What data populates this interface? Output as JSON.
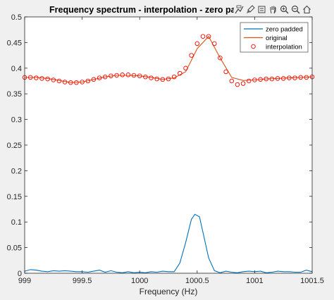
{
  "chart_data": {
    "type": "line",
    "title": "Frequency spectrum - interpolation - zero paddin",
    "xlabel": "Frequency (Hz)",
    "ylabel": "",
    "xlim": [
      999,
      1001.5
    ],
    "ylim": [
      0,
      0.5
    ],
    "xticks": [
      "999",
      "999.5",
      "1000",
      "1000.5",
      "1001",
      "1001.5"
    ],
    "yticks": [
      "0",
      "0.05",
      "0.1",
      "0.15",
      "0.2",
      "0.25",
      "0.3",
      "0.35",
      "0.4",
      "0.45",
      "0.5"
    ],
    "grid": false,
    "legend_position": "top-right",
    "series": [
      {
        "name": "zero padded",
        "color": "#0072bd",
        "style": "line",
        "x": [
          999.0,
          999.05,
          999.1,
          999.15,
          999.2,
          999.25,
          999.3,
          999.35,
          999.4,
          999.45,
          999.5,
          999.55,
          999.6,
          999.65,
          999.7,
          999.75,
          999.8,
          999.85,
          999.9,
          999.95,
          1000.0,
          1000.05,
          1000.1,
          1000.15,
          1000.2,
          1000.25,
          1000.3,
          1000.35,
          1000.4,
          1000.45,
          1000.48,
          1000.52,
          1000.55,
          1000.6,
          1000.65,
          1000.7,
          1000.75,
          1000.8,
          1000.85,
          1000.9,
          1000.95,
          1001.0,
          1001.05,
          1001.1,
          1001.15,
          1001.2,
          1001.25,
          1001.3,
          1001.35,
          1001.4,
          1001.45,
          1001.5
        ],
        "y": [
          0.004,
          0.007,
          0.006,
          0.004,
          0.003,
          0.005,
          0.004,
          0.005,
          0.004,
          0.003,
          0.003,
          0.002,
          0.004,
          0.006,
          0.002,
          0.005,
          0.002,
          0.001,
          0.003,
          0.001,
          0.002,
          0.001,
          0.003,
          0.002,
          0.004,
          0.003,
          0.003,
          0.02,
          0.06,
          0.105,
          0.115,
          0.11,
          0.08,
          0.03,
          0.005,
          0.001,
          0.004,
          0.002,
          0.001,
          0.003,
          0.004,
          0.003,
          0.004,
          0.001,
          0.002,
          0.004,
          0.003,
          0.003,
          0.002,
          0.002,
          0.006,
          0.003
        ]
      },
      {
        "name": "original",
        "color": "#d95319",
        "style": "line",
        "x": [
          999.0,
          999.1,
          999.2,
          999.3,
          999.4,
          999.5,
          999.6,
          999.7,
          999.8,
          999.9,
          1000.0,
          1000.1,
          1000.2,
          1000.3,
          1000.4,
          1000.5,
          1000.6,
          1000.7,
          1000.8,
          1000.9,
          1001.0,
          1001.1,
          1001.2,
          1001.3,
          1001.4,
          1001.5
        ],
        "y": [
          0.382,
          0.382,
          0.38,
          0.376,
          0.372,
          0.373,
          0.378,
          0.383,
          0.386,
          0.386,
          0.385,
          0.382,
          0.378,
          0.381,
          0.393,
          0.438,
          0.462,
          0.42,
          0.382,
          0.376,
          0.377,
          0.379,
          0.38,
          0.381,
          0.382,
          0.383
        ]
      },
      {
        "name": "interpolation",
        "color": "#ff0000",
        "style": "markers",
        "x": [
          999.0,
          999.05,
          999.1,
          999.15,
          999.2,
          999.25,
          999.3,
          999.35,
          999.4,
          999.45,
          999.5,
          999.55,
          999.6,
          999.65,
          999.7,
          999.75,
          999.8,
          999.85,
          999.9,
          999.95,
          1000.0,
          1000.05,
          1000.1,
          1000.15,
          1000.2,
          1000.25,
          1000.3,
          1000.35,
          1000.4,
          1000.45,
          1000.5,
          1000.55,
          1000.6,
          1000.65,
          1000.7,
          1000.75,
          1000.8,
          1000.85,
          1000.9,
          1000.95,
          1001.0,
          1001.05,
          1001.1,
          1001.15,
          1001.2,
          1001.25,
          1001.3,
          1001.35,
          1001.4,
          1001.45,
          1001.5
        ],
        "y": [
          0.382,
          0.382,
          0.381,
          0.38,
          0.379,
          0.377,
          0.375,
          0.373,
          0.372,
          0.372,
          0.373,
          0.375,
          0.378,
          0.381,
          0.383,
          0.385,
          0.386,
          0.387,
          0.387,
          0.386,
          0.385,
          0.383,
          0.381,
          0.379,
          0.378,
          0.379,
          0.383,
          0.39,
          0.4,
          0.425,
          0.448,
          0.462,
          0.462,
          0.448,
          0.42,
          0.393,
          0.375,
          0.368,
          0.37,
          0.375,
          0.377,
          0.378,
          0.379,
          0.379,
          0.38,
          0.38,
          0.381,
          0.381,
          0.382,
          0.382,
          0.383
        ]
      }
    ]
  },
  "toolbar": [
    {
      "icon": "data-tips-icon"
    },
    {
      "icon": "brush-icon"
    },
    {
      "icon": "link-icon"
    },
    {
      "icon": "pan-icon"
    },
    {
      "icon": "zoom-in-icon"
    },
    {
      "icon": "zoom-out-icon"
    },
    {
      "icon": "home-icon"
    }
  ]
}
